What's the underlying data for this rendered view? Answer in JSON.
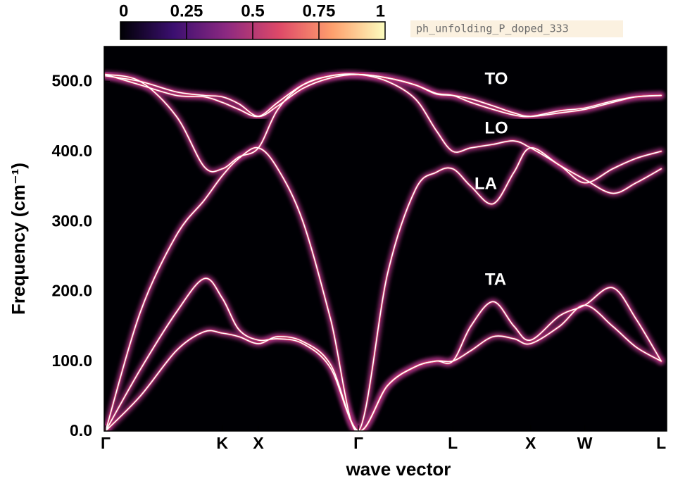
{
  "chart_data": {
    "type": "line",
    "x_label": "wave vector",
    "y_label": "Frequency (cm⁻¹)",
    "annotations": [
      "TO",
      "LO",
      "LA",
      "TA"
    ],
    "colorbar": {
      "lim": [
        0,
        1
      ],
      "ticks": [
        0,
        0.25,
        0.5,
        0.75,
        1
      ],
      "colors": [
        "#000004",
        "#3b0f70",
        "#8c2981",
        "#de4968",
        "#fe9f6d",
        "#fcfdbf"
      ],
      "label": "ph_unfolding_P_doped_333"
    },
    "xlim": [
      -0.01,
      4.04
    ],
    "xticks": [
      {
        "value": 0,
        "label": "Γ"
      },
      {
        "value": 0.84,
        "label": "K"
      },
      {
        "value": 1.1,
        "label": "X"
      },
      {
        "value": 1.82,
        "label": "Γ"
      },
      {
        "value": 2.5,
        "label": "L"
      },
      {
        "value": 3.06,
        "label": "X"
      },
      {
        "value": 3.45,
        "label": "W"
      },
      {
        "value": 4,
        "label": "L"
      }
    ],
    "ylim": [
      0,
      550
    ],
    "yticks": [
      {
        "value": 0,
        "label": "0.0"
      },
      {
        "value": 100,
        "label": "100.0"
      },
      {
        "value": 200,
        "label": "200.0"
      },
      {
        "value": 300,
        "label": "300.0"
      },
      {
        "value": 400,
        "label": "400.0"
      },
      {
        "value": 500,
        "label": "500.0"
      }
    ],
    "background": "#000004",
    "glow_color": "#a3307e",
    "x": [
      0,
      0.25,
      0.51,
      0.71,
      0.84,
      0.96,
      1.1,
      1.24,
      1.42,
      1.62,
      1.82,
      2.03,
      2.23,
      2.38,
      2.5,
      2.63,
      2.79,
      2.94,
      3.06,
      3.27,
      3.45,
      3.65,
      3.82,
      4
    ],
    "series": [
      {
        "color": "#ffffff",
        "values": [
          0,
          50,
          115,
          142,
          140,
          135,
          125,
          135,
          128,
          95,
          0,
          65,
          92,
          100,
          100,
          115,
          135,
          132,
          125,
          150,
          180,
          150,
          120,
          100
        ]
      },
      {
        "color": "#ffffff",
        "values": [
          0,
          88,
          170,
          218,
          190,
          145,
          130,
          132,
          125,
          90,
          0,
          65,
          92,
          100,
          100,
          150,
          185,
          150,
          130,
          165,
          180,
          205,
          160,
          100
        ]
      },
      {
        "color": "#ffffff",
        "values": [
          0,
          170,
          280,
          330,
          365,
          390,
          405,
          375,
          300,
          160,
          0,
          225,
          345,
          370,
          375,
          350,
          325,
          370,
          405,
          380,
          360,
          340,
          355,
          375
        ]
      },
      {
        "color": "#ffffff",
        "values": [
          510,
          500,
          450,
          378,
          375,
          392,
          405,
          460,
          495,
          508,
          510,
          500,
          475,
          430,
          400,
          405,
          410,
          415,
          405,
          380,
          355,
          375,
          390,
          400
        ]
      },
      {
        "color": "#ffffff",
        "values": [
          510,
          495,
          480,
          478,
          470,
          460,
          450,
          470,
          495,
          508,
          510,
          505,
          495,
          482,
          480,
          475,
          465,
          455,
          450,
          455,
          460,
          470,
          478,
          480
        ]
      },
      {
        "color": "#ffffff",
        "values": [
          508,
          500,
          485,
          480,
          478,
          468,
          450,
          465,
          490,
          505,
          510,
          505,
          495,
          483,
          480,
          470,
          460,
          452,
          450,
          458,
          462,
          472,
          478,
          480
        ]
      }
    ]
  }
}
